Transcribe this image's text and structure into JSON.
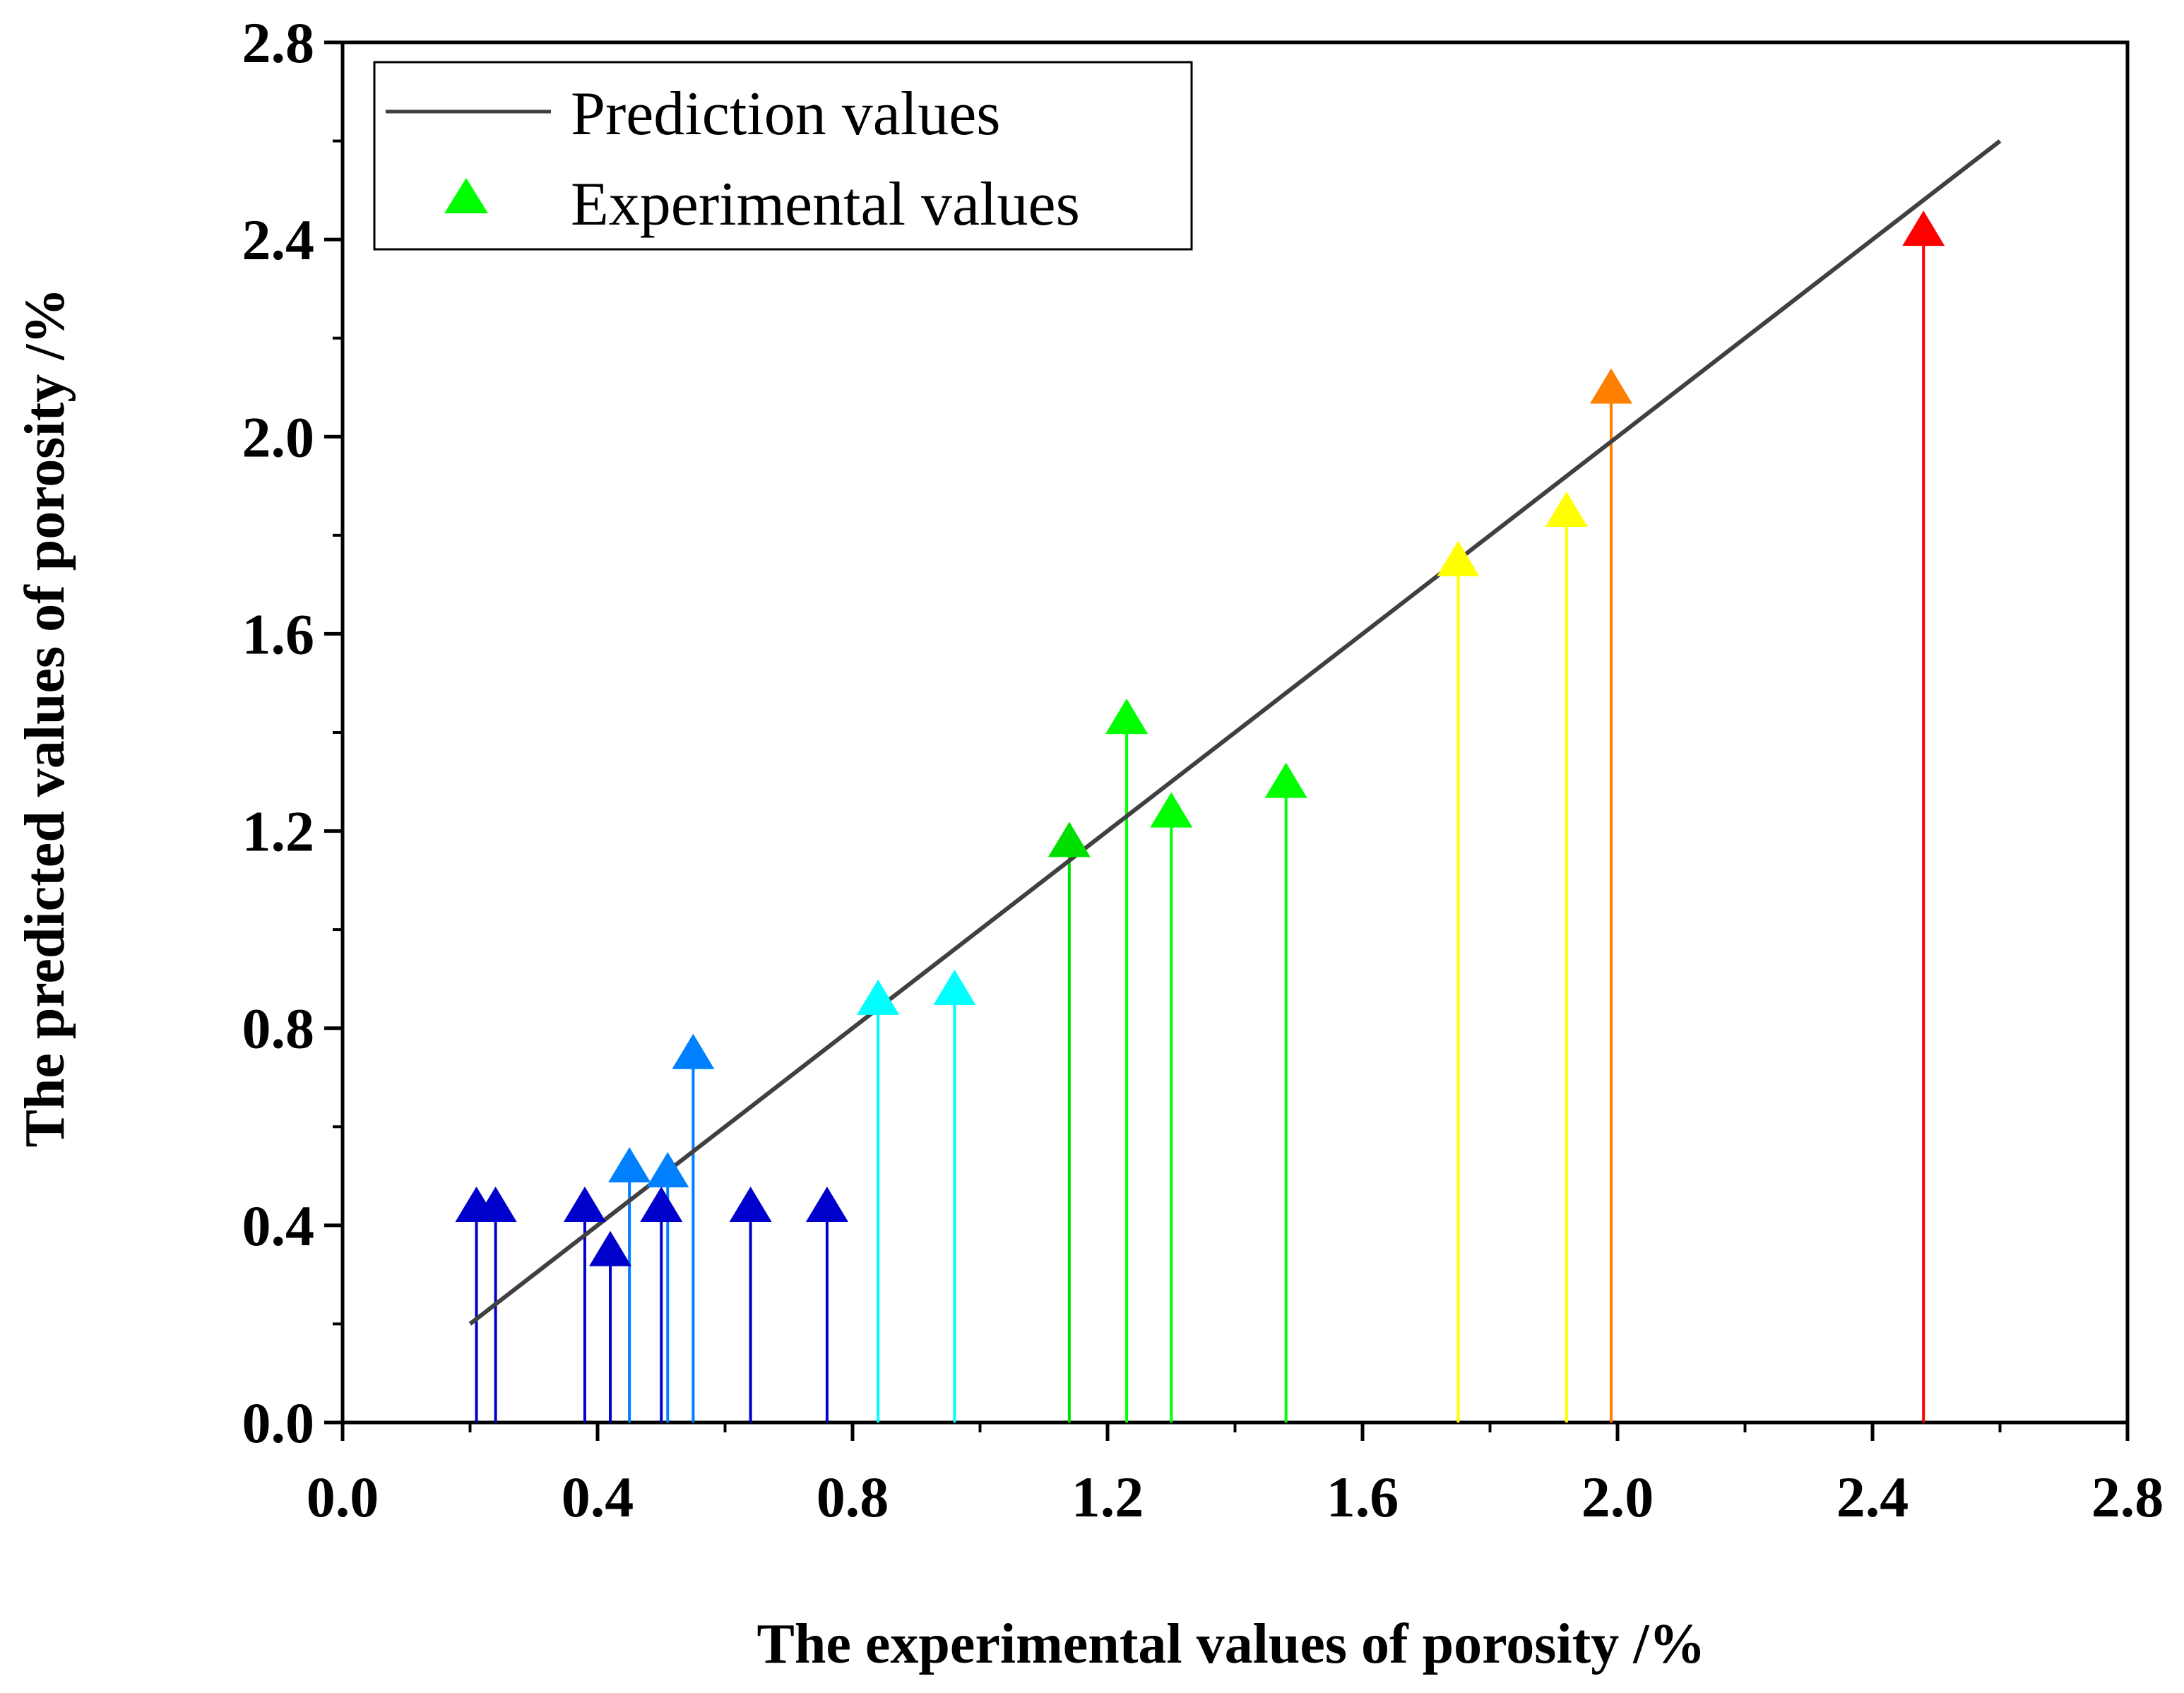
{
  "chart_data": {
    "type": "scatter",
    "title": "",
    "xlabel": "The  experimental values of porosity /%",
    "ylabel": "The  predicted values of porosity /%",
    "xlim": [
      0.0,
      2.8
    ],
    "ylim": [
      0.0,
      2.8
    ],
    "xticks": [
      "0.0",
      "0.4",
      "0.8",
      "1.2",
      "1.6",
      "2.0",
      "2.4",
      "2.8"
    ],
    "yticks": [
      "0.0",
      "0.4",
      "0.8",
      "1.2",
      "1.6",
      "2.0",
      "2.4",
      "2.8"
    ],
    "grid": false,
    "legend": {
      "position": "top-left",
      "entries": [
        {
          "label": "Prediction values",
          "marker": "line",
          "color": "#404040"
        },
        {
          "label": "Experimental values",
          "marker": "triangle",
          "color": "#00ff00"
        }
      ]
    },
    "series": [
      {
        "name": "Prediction values",
        "kind": "line",
        "color": "#404040",
        "x": [
          0.2,
          2.6
        ],
        "y": [
          0.2,
          2.6
        ]
      },
      {
        "name": "Experimental values",
        "kind": "scatter-with-drop-lines",
        "points": [
          {
            "x": 0.21,
            "y": 0.44,
            "color": "#0000cc"
          },
          {
            "x": 0.24,
            "y": 0.44,
            "color": "#0000cc"
          },
          {
            "x": 0.38,
            "y": 0.44,
            "color": "#0000cc"
          },
          {
            "x": 0.42,
            "y": 0.35,
            "color": "#0000cc"
          },
          {
            "x": 0.45,
            "y": 0.52,
            "color": "#0080ff"
          },
          {
            "x": 0.5,
            "y": 0.44,
            "color": "#0000cc"
          },
          {
            "x": 0.51,
            "y": 0.51,
            "color": "#0080ff"
          },
          {
            "x": 0.55,
            "y": 0.75,
            "color": "#0080ff"
          },
          {
            "x": 0.64,
            "y": 0.44,
            "color": "#0000cc"
          },
          {
            "x": 0.76,
            "y": 0.44,
            "color": "#0000cc"
          },
          {
            "x": 0.84,
            "y": 0.86,
            "color": "#00ffff"
          },
          {
            "x": 0.96,
            "y": 0.88,
            "color": "#00ffff"
          },
          {
            "x": 1.14,
            "y": 1.18,
            "color": "#00e000"
          },
          {
            "x": 1.23,
            "y": 1.43,
            "color": "#00ff00"
          },
          {
            "x": 1.3,
            "y": 1.24,
            "color": "#00ff00"
          },
          {
            "x": 1.48,
            "y": 1.3,
            "color": "#00ff00"
          },
          {
            "x": 1.75,
            "y": 1.75,
            "color": "#ffff00"
          },
          {
            "x": 1.92,
            "y": 1.85,
            "color": "#ffff00"
          },
          {
            "x": 1.99,
            "y": 2.1,
            "color": "#ff8000"
          },
          {
            "x": 2.48,
            "y": 2.42,
            "color": "#ff0000"
          }
        ]
      }
    ]
  }
}
